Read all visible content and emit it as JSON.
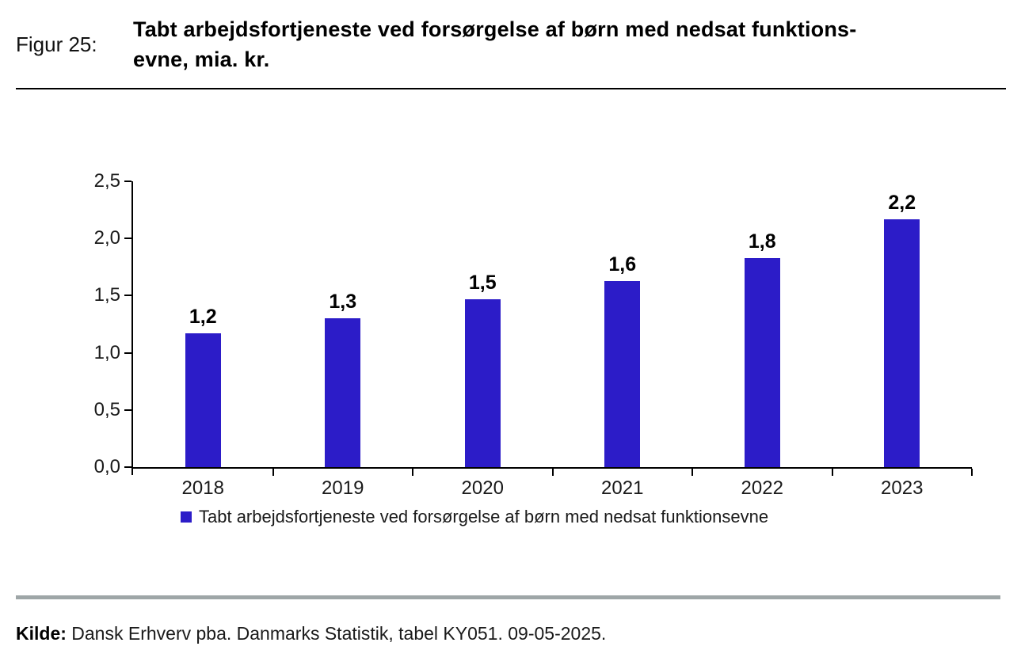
{
  "figure": {
    "label": "Figur 25:",
    "title_lines": [
      "Tabt arbejdsfortjeneste ved forsørgelse af børn med nedsat funktions-",
      "evne, mia. kr."
    ]
  },
  "chart_data": {
    "type": "bar",
    "title": "Tabt arbejdsfortjeneste ved forsørgelse af børn med nedsat funktionsevne, mia. kr.",
    "categories": [
      "2018",
      "2019",
      "2020",
      "2021",
      "2022",
      "2023"
    ],
    "values": [
      1.17,
      1.3,
      1.47,
      1.63,
      1.83,
      2.17
    ],
    "bar_labels": [
      "1,2",
      "1,3",
      "1,5",
      "1,6",
      "1,8",
      "2,2"
    ],
    "xlabel": "",
    "ylabel": "",
    "ylim": [
      0,
      2.5
    ],
    "ytick_labels": [
      "0,0",
      "0,5",
      "1,0",
      "1,5",
      "2,0",
      "2,5"
    ],
    "grid": false,
    "bar_color": "#2C1CC8",
    "legend": {
      "position": "bottom",
      "entries": [
        "Tabt arbejdsfortjeneste ved forsørgelse af børn med nedsat funktionsevne"
      ]
    }
  },
  "source": {
    "prefix": "Kilde:",
    "text": " Dansk Erhverv pba. Danmarks Statistik, tabel KY051. 09-05-2025."
  },
  "colors": {
    "accent": "#2C1CC8",
    "divider_gray": "#9EA6A7",
    "rule_black": "#000000"
  }
}
